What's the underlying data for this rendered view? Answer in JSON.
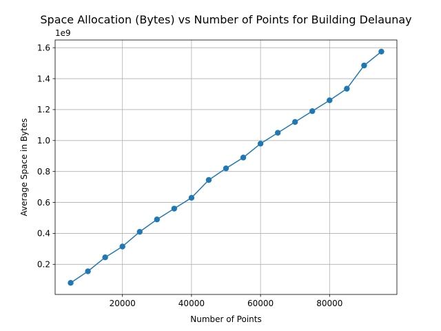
{
  "chart_data": {
    "type": "line",
    "title": "Space Allocation (Bytes) vs Number of Points for Building Delaunay",
    "xlabel": "Number of Points",
    "ylabel": "Average Space in Bytes",
    "y_offset_label": "1e9",
    "x": [
      5000,
      10000,
      15000,
      20000,
      25000,
      30000,
      35000,
      40000,
      45000,
      50000,
      55000,
      60000,
      65000,
      70000,
      75000,
      80000,
      85000,
      90000,
      95000
    ],
    "series": [
      {
        "values": [
          0.08,
          0.155,
          0.245,
          0.315,
          0.41,
          0.49,
          0.56,
          0.63,
          0.745,
          0.82,
          0.89,
          0.98,
          1.05,
          1.12,
          1.19,
          1.26,
          1.335,
          1.485,
          1.575
        ],
        "color": "#1f77b4",
        "marker": "circle"
      }
    ],
    "x_ticks": [
      20000,
      40000,
      60000,
      80000
    ],
    "x_tick_labels": [
      "20000",
      "40000",
      "60000",
      "80000"
    ],
    "y_ticks": [
      0.2,
      0.4,
      0.6,
      0.8,
      1.0,
      1.2,
      1.4,
      1.6
    ],
    "y_tick_labels": [
      "0.2",
      "0.4",
      "0.6",
      "0.8",
      "1.0",
      "1.2",
      "1.4",
      "1.6"
    ],
    "xlim": [
      500,
      99500
    ],
    "ylim": [
      0.0052,
      1.6498
    ],
    "grid": true
  }
}
